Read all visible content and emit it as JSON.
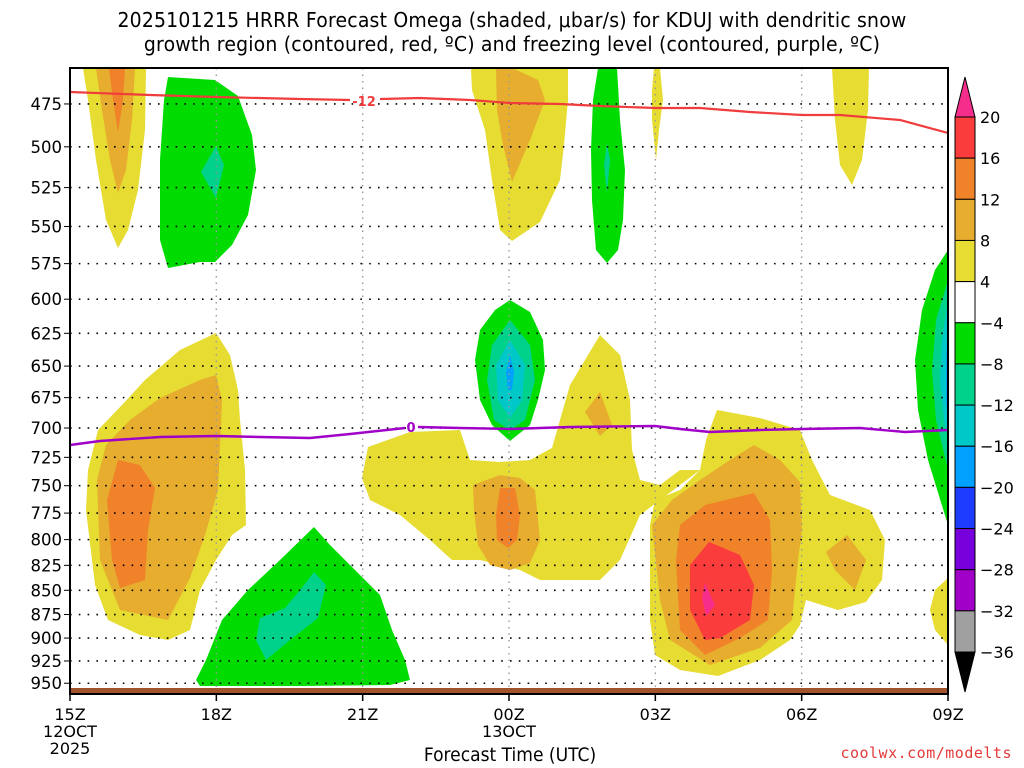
{
  "title": {
    "line1": "2025101215 HRRR Forecast Omega (shaded, μbar/s) for KDUJ with dendritic snow",
    "line2": "growth region (contoured, red, ºC) and freezing level (contoured, purple, ºC)"
  },
  "credit": "coolwx.com/modelts",
  "chart_data": {
    "type": "heatmap",
    "title": "2025101215 HRRR Forecast Omega (shaded, μbar/s) for KDUJ with dendritic snow growth region (contoured, red, ºC) and freezing level (contoured, purple, ºC)",
    "xlabel": "Forecast Time (UTC)",
    "ylabel": "",
    "x_ticks": [
      {
        "label": "15Z",
        "sub1": "12OCT",
        "sub2": "2025",
        "hour": 0
      },
      {
        "label": "18Z",
        "sub1": "",
        "sub2": "",
        "hour": 3
      },
      {
        "label": "21Z",
        "sub1": "",
        "sub2": "",
        "hour": 6
      },
      {
        "label": "00Z",
        "sub1": "13OCT",
        "sub2": "",
        "hour": 9
      },
      {
        "label": "03Z",
        "sub1": "",
        "sub2": "",
        "hour": 12
      },
      {
        "label": "06Z",
        "sub1": "",
        "sub2": "",
        "hour": 15
      },
      {
        "label": "09Z",
        "sub1": "",
        "sub2": "",
        "hour": 18
      }
    ],
    "x_range_hours": [
      0,
      18
    ],
    "y_ticks": [
      "475",
      "500",
      "525",
      "550",
      "575",
      "600",
      "625",
      "650",
      "675",
      "700",
      "725",
      "750",
      "775",
      "800",
      "825",
      "850",
      "875",
      "900",
      "925",
      "950"
    ],
    "y_units": "hPa",
    "y_range": [
      455,
      960
    ],
    "y_reversed": true,
    "grid": true,
    "colorbar": {
      "placement": "right",
      "levels": [
        "20",
        "16",
        "12",
        "8",
        "4",
        "−4",
        "−8",
        "−12",
        "−16",
        "−20",
        "−24",
        "−28",
        "−32",
        "−36"
      ],
      "colors": [
        "#f52e8c",
        "#fa3c3c",
        "#f0822a",
        "#e6ad2e",
        "#e6dc32",
        "#ffffff",
        "#00dc00",
        "#00d28c",
        "#00c8c8",
        "#00a0ff",
        "#1e3cff",
        "#7800dc",
        "#a000c8",
        "#a0a0a0",
        "#000000"
      ]
    },
    "contours": [
      {
        "name": "dendritic growth region",
        "color": "#f03c3c",
        "value_label": "-12",
        "units": "ºC",
        "approx_pressure_hPa": "~472 at 15Z to ~495 at 09Z"
      },
      {
        "name": "freezing level",
        "color": "#a000c8",
        "value_label": "0",
        "units": "ºC",
        "approx_pressure_hPa": "~700-715"
      }
    ],
    "omega_features": [
      {
        "time": "~16Z",
        "pressure_range": "455-570",
        "max_abs": "12-16",
        "sign": "upward (positive shading)"
      },
      {
        "time": "~18Z",
        "pressure_range": "465-580",
        "max_abs": "-8 to -12",
        "sign": "negative"
      },
      {
        "time": "~16-18Z",
        "pressure_range": "630-910",
        "max_abs": "12-16",
        "sign": "positive"
      },
      {
        "time": "~19-22Z",
        "pressure_range": "790-950",
        "max_abs": "-8 to -12",
        "sign": "negative"
      },
      {
        "time": "~00Z",
        "pressure_range": "455-555",
        "max_abs": "8-12",
        "sign": "positive"
      },
      {
        "time": "~00Z",
        "pressure_range": "625-710",
        "max_abs": "-16 to -20",
        "sign": "negative"
      },
      {
        "time": "~22Z-03Z",
        "pressure_range": "700-900",
        "max_abs": "12-16",
        "sign": "positive"
      },
      {
        "time": "~02Z",
        "pressure_range": "455-580",
        "max_abs": "-8 to -12",
        "sign": "negative"
      },
      {
        "time": "~00-02Z",
        "pressure_range": "845-950",
        "max_abs": "-8 to -12",
        "sign": "negative"
      },
      {
        "time": "~04Z",
        "pressure_range": "690-925",
        "max_abs": ">20",
        "sign": "positive"
      },
      {
        "time": "~07Z",
        "pressure_range": "455-525",
        "max_abs": "4-8",
        "sign": "positive"
      },
      {
        "time": "~09Z",
        "pressure_range": "580-780",
        "max_abs": "-16 to -20",
        "sign": "negative"
      }
    ]
  }
}
